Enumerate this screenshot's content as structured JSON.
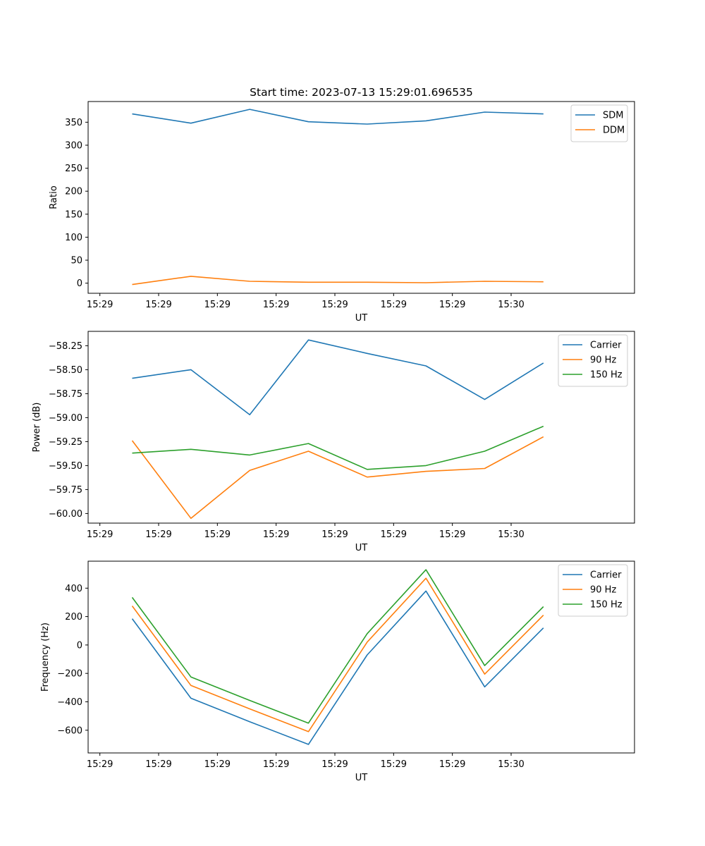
{
  "title": "Start time: 2023-07-13 15:29:01.696535",
  "colors": {
    "c0": "#1f77b4",
    "c1": "#ff7f0e",
    "c2": "#2ca02c"
  },
  "chart_data": [
    {
      "type": "line",
      "title": "Start time: 2023-07-13 15:29:01.696535",
      "xlabel": "UT",
      "ylabel": "Ratio",
      "x_tick_labels": [
        "15:29",
        "15:29",
        "15:29",
        "15:29",
        "15:29",
        "15:29",
        "15:29",
        "15:30"
      ],
      "xlim": [
        -0.2,
        9.1
      ],
      "ylim": [
        -22,
        395
      ],
      "yticks": [
        0,
        50,
        100,
        150,
        200,
        250,
        300,
        350
      ],
      "x": [
        0.55,
        1.55,
        2.55,
        3.55,
        4.55,
        5.55,
        6.55,
        7.55
      ],
      "legend_position": "top-right",
      "series": [
        {
          "name": "SDM",
          "color": "#1f77b4",
          "values": [
            368,
            348,
            378,
            351,
            346,
            353,
            372,
            368
          ]
        },
        {
          "name": "DDM",
          "color": "#ff7f0e",
          "values": [
            -3,
            15,
            4,
            2,
            2,
            1,
            4,
            3
          ]
        }
      ]
    },
    {
      "type": "line",
      "title": "",
      "xlabel": "UT",
      "ylabel": "Power (dB)",
      "x_tick_labels": [
        "15:29",
        "15:29",
        "15:29",
        "15:29",
        "15:29",
        "15:29",
        "15:29",
        "15:30"
      ],
      "xlim": [
        -0.2,
        9.1
      ],
      "ylim": [
        -60.1,
        -58.1
      ],
      "yticks": [
        -60.0,
        -59.75,
        -59.5,
        -59.25,
        -59.0,
        -58.75,
        -58.5,
        -58.25
      ],
      "ytick_labels": [
        "−60.00",
        "−59.75",
        "−59.50",
        "−59.25",
        "−59.00",
        "−58.75",
        "−58.50",
        "−58.25"
      ],
      "x": [
        0.55,
        1.55,
        2.55,
        3.55,
        4.55,
        5.55,
        6.55,
        7.55
      ],
      "legend_position": "top-right",
      "series": [
        {
          "name": "Carrier",
          "color": "#1f77b4",
          "values": [
            -58.59,
            -58.5,
            -58.97,
            -58.19,
            -58.33,
            -58.46,
            -58.81,
            -58.43
          ]
        },
        {
          "name": "90 Hz",
          "color": "#ff7f0e",
          "values": [
            -59.24,
            -60.05,
            -59.55,
            -59.35,
            -59.62,
            -59.56,
            -59.53,
            -59.2
          ]
        },
        {
          "name": "150 Hz",
          "color": "#2ca02c",
          "values": [
            -59.37,
            -59.33,
            -59.39,
            -59.27,
            -59.54,
            -59.5,
            -59.35,
            -59.09
          ]
        }
      ]
    },
    {
      "type": "line",
      "title": "",
      "xlabel": "UT",
      "ylabel": "Frequency (Hz)",
      "x_tick_labels": [
        "15:29",
        "15:29",
        "15:29",
        "15:29",
        "15:29",
        "15:29",
        "15:29",
        "15:30"
      ],
      "xlim": [
        -0.2,
        9.1
      ],
      "ylim": [
        -760,
        590
      ],
      "yticks": [
        -600,
        -400,
        -200,
        0,
        200,
        400
      ],
      "ytick_labels": [
        "−600",
        "−400",
        "−200",
        "0",
        "200",
        "400"
      ],
      "x": [
        0.55,
        1.55,
        2.55,
        3.55,
        4.55,
        5.55,
        6.55,
        7.55
      ],
      "legend_position": "top-right",
      "series": [
        {
          "name": "Carrier",
          "color": "#1f77b4",
          "values": [
            185,
            -375,
            -540,
            -700,
            -70,
            380,
            -295,
            120
          ]
        },
        {
          "name": "90 Hz",
          "color": "#ff7f0e",
          "values": [
            275,
            -285,
            -450,
            -610,
            20,
            470,
            -205,
            210
          ]
        },
        {
          "name": "150 Hz",
          "color": "#2ca02c",
          "values": [
            335,
            -225,
            -390,
            -550,
            80,
            530,
            -145,
            270
          ]
        }
      ]
    }
  ]
}
